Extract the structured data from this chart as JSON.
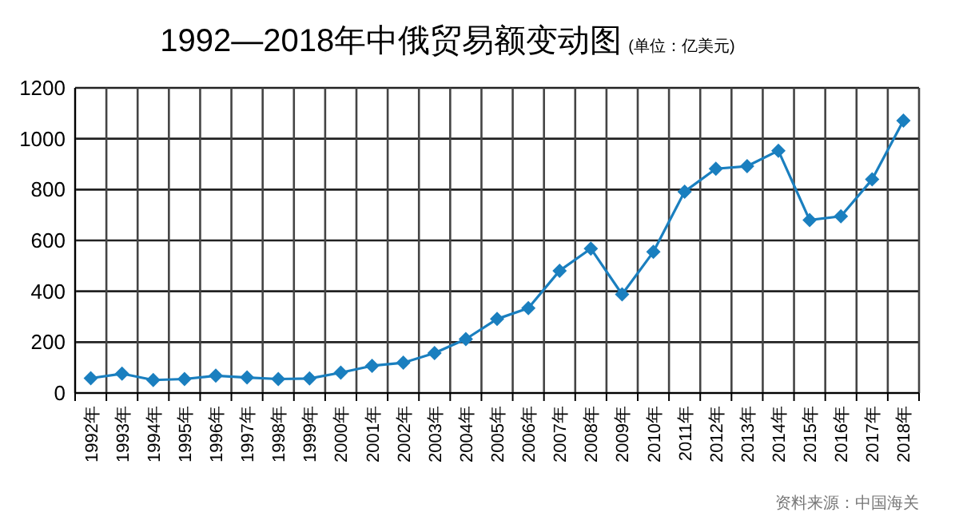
{
  "chart_data": {
    "type": "line",
    "title": "1992—2018年中俄贸易额变动图",
    "subtitle": "(单位：亿美元)",
    "categories": [
      "1992年",
      "1993年",
      "1994年",
      "1995年",
      "1996年",
      "1997年",
      "1998年",
      "1999年",
      "2000年",
      "2001年",
      "2002年",
      "2003年",
      "2004年",
      "2005年",
      "2006年",
      "2007年",
      "2008年",
      "2009年",
      "2010年",
      "2011年",
      "2012年",
      "2013年",
      "2014年",
      "2015年",
      "2016年",
      "2017年",
      "2018年"
    ],
    "series": [
      {
        "color": "#1a7fbf",
        "values": [
          58,
          76,
          51,
          55,
          68,
          61,
          55,
          57,
          80,
          107,
          119,
          157,
          212,
          291,
          334,
          481,
          568,
          388,
          555,
          792,
          882,
          892,
          953,
          680,
          695,
          840,
          1071
        ]
      }
    ],
    "ylim": [
      0,
      1200
    ],
    "yticks": [
      0,
      200,
      400,
      600,
      800,
      1000,
      1200
    ],
    "grid": true,
    "marker": "diamond",
    "line_style": "solid",
    "annotations": [
      "资料来源：中国海关"
    ]
  }
}
